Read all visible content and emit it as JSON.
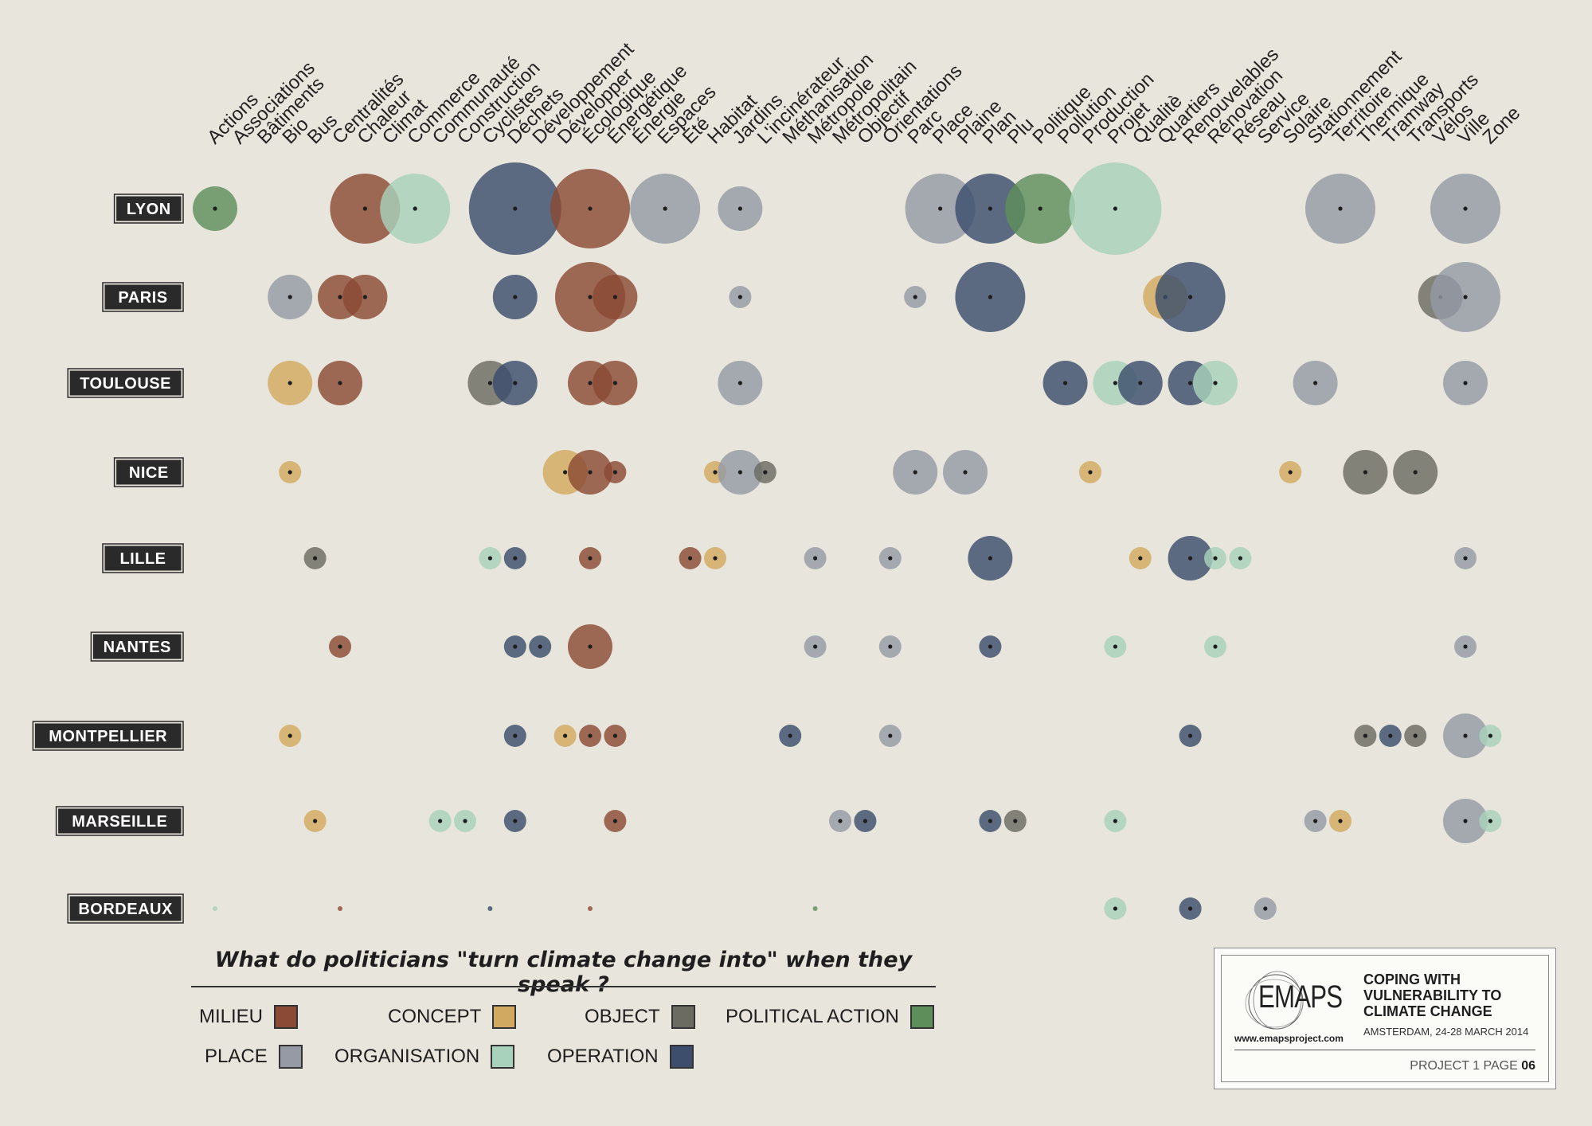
{
  "chart_data": {
    "type": "scatter",
    "title": "What do politicians \"turn climate change into\" when they speak ?",
    "words": [
      "Actions",
      "Associations",
      "Bâtiments",
      "Bio",
      "Bus",
      "Centralités",
      "Chaleur",
      "Climat",
      "Commerce",
      "Communauté",
      "Construction",
      "Cyclistes",
      "Déchets",
      "Développement",
      "Développer",
      "Écologique",
      "Énergétique",
      "Énergie",
      "Espaces",
      "Été",
      "Habitat",
      "Jardins",
      "L'incinérateur",
      "Méthanisation",
      "Métropole",
      "Métropolitain",
      "Objectif",
      "Orientations",
      "Parc",
      "Place",
      "Plaine",
      "Plan",
      "Plu",
      "Politique",
      "Pollution",
      "Production",
      "Projet",
      "Qualitè",
      "Quartiers",
      "Renouvelables",
      "Rénovation",
      "Réseau",
      "Service",
      "Solaire",
      "Stationnement",
      "Territoire",
      "Thermique",
      "Tramway",
      "Transports",
      "Vélos",
      "Ville",
      "Zone"
    ],
    "cities": [
      "LYON",
      "PARIS",
      "TOULOUSE",
      "NICE",
      "LILLE",
      "NANTES",
      "MONTPELLIER",
      "MARSEILLE",
      "BORDEAUX"
    ],
    "categories": [
      {
        "name": "MILIEU",
        "color": "#8b4a35"
      },
      {
        "name": "CONCEPT",
        "color": "#d2a960"
      },
      {
        "name": "OBJECT",
        "color": "#6b6b62"
      },
      {
        "name": "POLITICAL ACTION",
        "color": "#5e8f5b"
      },
      {
        "name": "PLACE",
        "color": "#959aa5"
      },
      {
        "name": "ORGANISATION",
        "color": "#a8d2bb"
      },
      {
        "name": "OPERATION",
        "color": "#3c4e6c"
      }
    ],
    "bubbles": [
      {
        "city": "LYON",
        "word": "Actions",
        "cat": "POLITICAL ACTION",
        "size": 3
      },
      {
        "city": "LYON",
        "word": "Chaleur",
        "cat": "MILIEU",
        "size": 5
      },
      {
        "city": "LYON",
        "word": "Commerce",
        "cat": "ORGANISATION",
        "size": 5
      },
      {
        "city": "LYON",
        "word": "Déchets",
        "cat": "OPERATION",
        "size": 9
      },
      {
        "city": "LYON",
        "word": "Écologique",
        "cat": "MILIEU",
        "size": 6
      },
      {
        "city": "LYON",
        "word": "Espaces",
        "cat": "PLACE",
        "size": 5
      },
      {
        "city": "LYON",
        "word": "Jardins",
        "cat": "PLACE",
        "size": 3
      },
      {
        "city": "LYON",
        "word": "Place",
        "cat": "PLACE",
        "size": 5
      },
      {
        "city": "LYON",
        "word": "Plan",
        "cat": "OPERATION",
        "size": 5
      },
      {
        "city": "LYON",
        "word": "Politique",
        "cat": "POLITICAL ACTION",
        "size": 5
      },
      {
        "city": "LYON",
        "word": "Projet",
        "cat": "ORGANISATION",
        "size": 9
      },
      {
        "city": "LYON",
        "word": "Territoire",
        "cat": "PLACE",
        "size": 5
      },
      {
        "city": "LYON",
        "word": "Ville",
        "cat": "PLACE",
        "size": 5
      },
      {
        "city": "PARIS",
        "word": "Bio",
        "cat": "PLACE",
        "size": 3
      },
      {
        "city": "PARIS",
        "word": "Centralités",
        "cat": "MILIEU",
        "size": 3
      },
      {
        "city": "PARIS",
        "word": "Chaleur",
        "cat": "MILIEU",
        "size": 3
      },
      {
        "city": "PARIS",
        "word": "Déchets",
        "cat": "OPERATION",
        "size": 3
      },
      {
        "city": "PARIS",
        "word": "Écologique",
        "cat": "MILIEU",
        "size": 5
      },
      {
        "city": "PARIS",
        "word": "Énergétique",
        "cat": "MILIEU",
        "size": 3
      },
      {
        "city": "PARIS",
        "word": "Jardins",
        "cat": "PLACE",
        "size": 1
      },
      {
        "city": "PARIS",
        "word": "Parc",
        "cat": "PLACE",
        "size": 1
      },
      {
        "city": "PARIS",
        "word": "Plan",
        "cat": "OPERATION",
        "size": 5
      },
      {
        "city": "PARIS",
        "word": "Quartiers",
        "cat": "CONCEPT",
        "size": 3
      },
      {
        "city": "PARIS",
        "word": "Renouvelables",
        "cat": "OPERATION",
        "size": 5
      },
      {
        "city": "PARIS",
        "word": "Vélos",
        "cat": "OBJECT",
        "size": 3
      },
      {
        "city": "PARIS",
        "word": "Ville",
        "cat": "PLACE",
        "size": 5
      },
      {
        "city": "TOULOUSE",
        "word": "Bio",
        "cat": "CONCEPT",
        "size": 3
      },
      {
        "city": "TOULOUSE",
        "word": "Centralités",
        "cat": "MILIEU",
        "size": 3
      },
      {
        "city": "TOULOUSE",
        "word": "Cyclistes",
        "cat": "OBJECT",
        "size": 3
      },
      {
        "city": "TOULOUSE",
        "word": "Déchets",
        "cat": "OPERATION",
        "size": 3
      },
      {
        "city": "TOULOUSE",
        "word": "Écologique",
        "cat": "MILIEU",
        "size": 3
      },
      {
        "city": "TOULOUSE",
        "word": "Énergétique",
        "cat": "MILIEU",
        "size": 3
      },
      {
        "city": "TOULOUSE",
        "word": "Jardins",
        "cat": "PLACE",
        "size": 3
      },
      {
        "city": "TOULOUSE",
        "word": "Pollution",
        "cat": "OPERATION",
        "size": 3
      },
      {
        "city": "TOULOUSE",
        "word": "Projet",
        "cat": "ORGANISATION",
        "size": 3
      },
      {
        "city": "TOULOUSE",
        "word": "Qualitè",
        "cat": "OPERATION",
        "size": 3
      },
      {
        "city": "TOULOUSE",
        "word": "Renouvelables",
        "cat": "OPERATION",
        "size": 3
      },
      {
        "city": "TOULOUSE",
        "word": "Rénovation",
        "cat": "ORGANISATION",
        "size": 3
      },
      {
        "city": "TOULOUSE",
        "word": "Stationnement",
        "cat": "PLACE",
        "size": 3
      },
      {
        "city": "TOULOUSE",
        "word": "Ville",
        "cat": "PLACE",
        "size": 3
      },
      {
        "city": "NICE",
        "word": "Bio",
        "cat": "CONCEPT",
        "size": 1
      },
      {
        "city": "NICE",
        "word": "Développer",
        "cat": "CONCEPT",
        "size": 3
      },
      {
        "city": "NICE",
        "word": "Écologique",
        "cat": "MILIEU",
        "size": 3
      },
      {
        "city": "NICE",
        "word": "Énergétique",
        "cat": "MILIEU",
        "size": 1
      },
      {
        "city": "NICE",
        "word": "Habitat",
        "cat": "CONCEPT",
        "size": 1
      },
      {
        "city": "NICE",
        "word": "Jardins",
        "cat": "PLACE",
        "size": 3
      },
      {
        "city": "NICE",
        "word": "L'incinérateur",
        "cat": "OBJECT",
        "size": 1
      },
      {
        "city": "NICE",
        "word": "Parc",
        "cat": "PLACE",
        "size": 3
      },
      {
        "city": "NICE",
        "word": "Plaine",
        "cat": "PLACE",
        "size": 3
      },
      {
        "city": "NICE",
        "word": "Production",
        "cat": "CONCEPT",
        "size": 1
      },
      {
        "city": "NICE",
        "word": "Solaire",
        "cat": "CONCEPT",
        "size": 1
      },
      {
        "city": "NICE",
        "word": "Thermique",
        "cat": "OBJECT",
        "size": 3
      },
      {
        "city": "NICE",
        "word": "Transports",
        "cat": "OBJECT",
        "size": 3
      },
      {
        "city": "LILLE",
        "word": "Bus",
        "cat": "OBJECT",
        "size": 1
      },
      {
        "city": "LILLE",
        "word": "Cyclistes",
        "cat": "ORGANISATION",
        "size": 1
      },
      {
        "city": "LILLE",
        "word": "Déchets",
        "cat": "OPERATION",
        "size": 1
      },
      {
        "city": "LILLE",
        "word": "Écologique",
        "cat": "MILIEU",
        "size": 1
      },
      {
        "city": "LILLE",
        "word": "Été",
        "cat": "MILIEU",
        "size": 1
      },
      {
        "city": "LILLE",
        "word": "Habitat",
        "cat": "CONCEPT",
        "size": 1
      },
      {
        "city": "LILLE",
        "word": "Métropole",
        "cat": "PLACE",
        "size": 1
      },
      {
        "city": "LILLE",
        "word": "Orientations",
        "cat": "PLACE",
        "size": 1
      },
      {
        "city": "LILLE",
        "word": "Plan",
        "cat": "OPERATION",
        "size": 3
      },
      {
        "city": "LILLE",
        "word": "Qualitè",
        "cat": "CONCEPT",
        "size": 1
      },
      {
        "city": "LILLE",
        "word": "Renouvelables",
        "cat": "OPERATION",
        "size": 3
      },
      {
        "city": "LILLE",
        "word": "Rénovation",
        "cat": "ORGANISATION",
        "size": 1
      },
      {
        "city": "LILLE",
        "word": "Réseau",
        "cat": "ORGANISATION",
        "size": 1
      },
      {
        "city": "LILLE",
        "word": "Ville",
        "cat": "PLACE",
        "size": 1
      },
      {
        "city": "NANTES",
        "word": "Centralités",
        "cat": "MILIEU",
        "size": 1
      },
      {
        "city": "NANTES",
        "word": "Déchets",
        "cat": "OPERATION",
        "size": 1
      },
      {
        "city": "NANTES",
        "word": "Développement",
        "cat": "OPERATION",
        "size": 1
      },
      {
        "city": "NANTES",
        "word": "Écologique",
        "cat": "MILIEU",
        "size": 3
      },
      {
        "city": "NANTES",
        "word": "Métropole",
        "cat": "PLACE",
        "size": 1
      },
      {
        "city": "NANTES",
        "word": "Orientations",
        "cat": "PLACE",
        "size": 1
      },
      {
        "city": "NANTES",
        "word": "Plan",
        "cat": "OPERATION",
        "size": 1
      },
      {
        "city": "NANTES",
        "word": "Projet",
        "cat": "ORGANISATION",
        "size": 1
      },
      {
        "city": "NANTES",
        "word": "Rénovation",
        "cat": "ORGANISATION",
        "size": 1
      },
      {
        "city": "NANTES",
        "word": "Ville",
        "cat": "PLACE",
        "size": 1
      },
      {
        "city": "MONTPELLIER",
        "word": "Bio",
        "cat": "CONCEPT",
        "size": 1
      },
      {
        "city": "MONTPELLIER",
        "word": "Déchets",
        "cat": "OPERATION",
        "size": 1
      },
      {
        "city": "MONTPELLIER",
        "word": "Développer",
        "cat": "CONCEPT",
        "size": 1
      },
      {
        "city": "MONTPELLIER",
        "word": "Écologique",
        "cat": "MILIEU",
        "size": 1
      },
      {
        "city": "MONTPELLIER",
        "word": "Énergétique",
        "cat": "MILIEU",
        "size": 1
      },
      {
        "city": "MONTPELLIER",
        "word": "Méthanisation",
        "cat": "OPERATION",
        "size": 1
      },
      {
        "city": "MONTPELLIER",
        "word": "Orientations",
        "cat": "PLACE",
        "size": 1
      },
      {
        "city": "MONTPELLIER",
        "word": "Renouvelables",
        "cat": "OPERATION",
        "size": 1
      },
      {
        "city": "MONTPELLIER",
        "word": "Thermique",
        "cat": "OBJECT",
        "size": 1
      },
      {
        "city": "MONTPELLIER",
        "word": "Tramway",
        "cat": "OPERATION",
        "size": 1
      },
      {
        "city": "MONTPELLIER",
        "word": "Transports",
        "cat": "OBJECT",
        "size": 1
      },
      {
        "city": "MONTPELLIER",
        "word": "Ville",
        "cat": "PLACE",
        "size": 3
      },
      {
        "city": "MONTPELLIER",
        "word": "Zone",
        "cat": "ORGANISATION",
        "size": 1
      },
      {
        "city": "MARSEILLE",
        "word": "Bus",
        "cat": "CONCEPT",
        "size": 1
      },
      {
        "city": "MARSEILLE",
        "word": "Communauté",
        "cat": "ORGANISATION",
        "size": 1
      },
      {
        "city": "MARSEILLE",
        "word": "Construction",
        "cat": "ORGANISATION",
        "size": 1
      },
      {
        "city": "MARSEILLE",
        "word": "Déchets",
        "cat": "OPERATION",
        "size": 1
      },
      {
        "city": "MARSEILLE",
        "word": "Énergétique",
        "cat": "MILIEU",
        "size": 1
      },
      {
        "city": "MARSEILLE",
        "word": "Métropolitain",
        "cat": "PLACE",
        "size": 1
      },
      {
        "city": "MARSEILLE",
        "word": "Objectif",
        "cat": "OPERATION",
        "size": 1
      },
      {
        "city": "MARSEILLE",
        "word": "Plan",
        "cat": "OPERATION",
        "size": 1
      },
      {
        "city": "MARSEILLE",
        "word": "Plu",
        "cat": "OBJECT",
        "size": 1
      },
      {
        "city": "MARSEILLE",
        "word": "Projet",
        "cat": "ORGANISATION",
        "size": 1
      },
      {
        "city": "MARSEILLE",
        "word": "Stationnement",
        "cat": "PLACE",
        "size": 1
      },
      {
        "city": "MARSEILLE",
        "word": "Territoire",
        "cat": "CONCEPT",
        "size": 1
      },
      {
        "city": "MARSEILLE",
        "word": "Ville",
        "cat": "PLACE",
        "size": 3
      },
      {
        "city": "MARSEILLE",
        "word": "Zone",
        "cat": "ORGANISATION",
        "size": 1
      },
      {
        "city": "BORDEAUX",
        "word": "Actions",
        "cat": "ORGANISATION",
        "size": 0
      },
      {
        "city": "BORDEAUX",
        "word": "Centralités",
        "cat": "MILIEU",
        "size": 0
      },
      {
        "city": "BORDEAUX",
        "word": "Cyclistes",
        "cat": "OPERATION",
        "size": 0
      },
      {
        "city": "BORDEAUX",
        "word": "Écologique",
        "cat": "MILIEU",
        "size": 0
      },
      {
        "city": "BORDEAUX",
        "word": "Métropole",
        "cat": "POLITICAL ACTION",
        "size": 0
      },
      {
        "city": "BORDEAUX",
        "word": "Projet",
        "cat": "ORGANISATION",
        "size": 1
      },
      {
        "city": "BORDEAUX",
        "word": "Renouvelables",
        "cat": "OPERATION",
        "size": 1
      },
      {
        "city": "BORDEAUX",
        "word": "Service",
        "cat": "PLACE",
        "size": 1
      }
    ]
  },
  "question": "What do politicians \"turn climate change into\" when they speak ?",
  "legend": {
    "milieu": "MILIEU",
    "concept": "CONCEPT",
    "object": "OBJECT",
    "political_action": "POLITICAL ACTION",
    "place": "PLACE",
    "organisation": "ORGANISATION",
    "operation": "OPERATION"
  },
  "info": {
    "logo": "EMAPS",
    "url": "www.emapsproject.com",
    "title": "COPING WITH VULNERABILITY TO CLIMATE CHANGE",
    "subtitle": "AMSTERDAM, 24-28 MARCH 2014",
    "page_prefix": "PROJECT 1 PAGE",
    "page_number": "06"
  }
}
